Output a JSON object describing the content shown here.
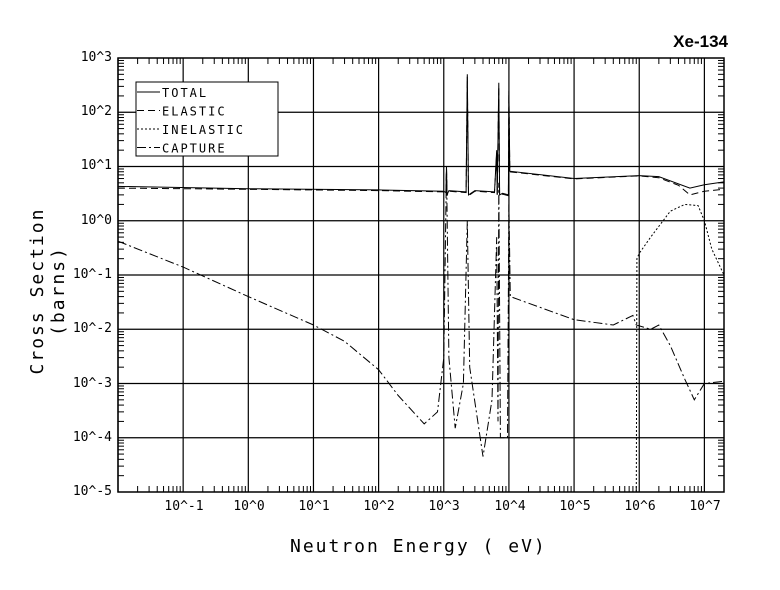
{
  "chart_data": {
    "type": "line",
    "title": "Xe-134",
    "xlabel": "Neutron Energy ( eV)",
    "ylabel": "Cross Section (barns)",
    "xscale": "log",
    "yscale": "log",
    "xlim": [
      0.01,
      20000000
    ],
    "ylim": [
      1e-05,
      1000
    ],
    "x_tick_labels": [
      "10^-1",
      "10^0",
      "10^1",
      "10^2",
      "10^3",
      "10^4",
      "10^5",
      "10^6",
      "10^7"
    ],
    "y_tick_labels": [
      "10^3",
      "10^2",
      "10^1",
      "10^0",
      "10^-1",
      "10^-2",
      "10^-3",
      "10^-4",
      "10^-5"
    ],
    "grid": true,
    "legend_position": "top-left",
    "series": [
      {
        "name": "TOTAL",
        "style": "solid",
        "points": [
          [
            0.01,
            4.3
          ],
          [
            1,
            3.9
          ],
          [
            100,
            3.7
          ],
          [
            1000,
            3.5
          ],
          [
            1080,
            3.3
          ],
          [
            1100,
            10
          ],
          [
            1120,
            3.0
          ],
          [
            1200,
            3.6
          ],
          [
            2200,
            3.4
          ],
          [
            2300,
            500
          ],
          [
            2400,
            3.0
          ],
          [
            3000,
            3.6
          ],
          [
            6000,
            3.4
          ],
          [
            6500,
            20
          ],
          [
            6600,
            3.0
          ],
          [
            7000,
            350
          ],
          [
            7200,
            3.0
          ],
          [
            8000,
            3.2
          ],
          [
            9800,
            3.0
          ],
          [
            10000,
            250
          ],
          [
            10300,
            8.2
          ],
          [
            100000,
            6.0
          ],
          [
            1000000,
            6.8
          ],
          [
            2000000,
            6.5
          ],
          [
            6000000,
            4.0
          ],
          [
            10000000,
            4.6
          ],
          [
            20000000,
            5.2
          ]
        ]
      },
      {
        "name": "ELASTIC",
        "style": "dashed",
        "points": [
          [
            0.01,
            4.0
          ],
          [
            1,
            3.8
          ],
          [
            100,
            3.6
          ],
          [
            1000,
            3.4
          ],
          [
            1080,
            3.2
          ],
          [
            1100,
            9
          ],
          [
            1120,
            2.9
          ],
          [
            1200,
            3.5
          ],
          [
            2200,
            3.3
          ],
          [
            2300,
            450
          ],
          [
            2400,
            2.9
          ],
          [
            3000,
            3.5
          ],
          [
            6000,
            3.3
          ],
          [
            6500,
            18
          ],
          [
            6600,
            2.9
          ],
          [
            7000,
            300
          ],
          [
            7200,
            2.9
          ],
          [
            8000,
            3.1
          ],
          [
            9800,
            2.9
          ],
          [
            10000,
            220
          ],
          [
            10300,
            8.0
          ],
          [
            100000,
            5.9
          ],
          [
            1000000,
            6.7
          ],
          [
            2000000,
            6.2
          ],
          [
            4000000,
            4.5
          ],
          [
            6000000,
            3.0
          ],
          [
            10000000,
            3.5
          ],
          [
            20000000,
            3.8
          ]
        ]
      },
      {
        "name": "INELASTIC",
        "style": "dotted",
        "points": [
          [
            900000,
            1e-05
          ],
          [
            920000,
            0.2
          ],
          [
            1000000,
            0.25
          ],
          [
            1500000,
            0.5
          ],
          [
            3000000,
            1.5
          ],
          [
            5000000,
            2.0
          ],
          [
            8000000,
            1.9
          ],
          [
            10000000,
            1.0
          ],
          [
            13000000,
            0.3
          ],
          [
            20000000,
            0.1
          ]
        ]
      },
      {
        "name": "CAPTURE",
        "style": "dashdot",
        "points": [
          [
            0.01,
            0.42
          ],
          [
            0.1,
            0.14
          ],
          [
            1,
            0.04
          ],
          [
            10,
            0.012
          ],
          [
            30,
            0.006
          ],
          [
            100,
            0.0018
          ],
          [
            200,
            0.0006
          ],
          [
            500,
            0.00018
          ],
          [
            800,
            0.0003
          ],
          [
            1000,
            0.003
          ],
          [
            1100,
            10
          ],
          [
            1200,
            0.003
          ],
          [
            1500,
            0.00015
          ],
          [
            2000,
            0.001
          ],
          [
            2300,
            1
          ],
          [
            2500,
            0.002
          ],
          [
            4000,
            4.5e-05
          ],
          [
            5500,
            0.0005
          ],
          [
            6500,
            0.5
          ],
          [
            6800,
            0.0002
          ],
          [
            7000,
            5
          ],
          [
            7400,
            0.0001
          ],
          [
            9500,
            0.0001
          ],
          [
            10000,
            2
          ],
          [
            10500,
            0.04
          ],
          [
            100000,
            0.015
          ],
          [
            400000,
            0.012
          ],
          [
            800000,
            0.018
          ],
          [
            900000,
            0.012
          ],
          [
            1500000,
            0.01
          ],
          [
            2000000,
            0.012
          ],
          [
            3000000,
            0.005
          ],
          [
            5000000,
            0.0012
          ],
          [
            7000000,
            0.0005
          ],
          [
            10000000,
            0.001
          ],
          [
            20000000,
            0.0011
          ]
        ]
      }
    ]
  }
}
